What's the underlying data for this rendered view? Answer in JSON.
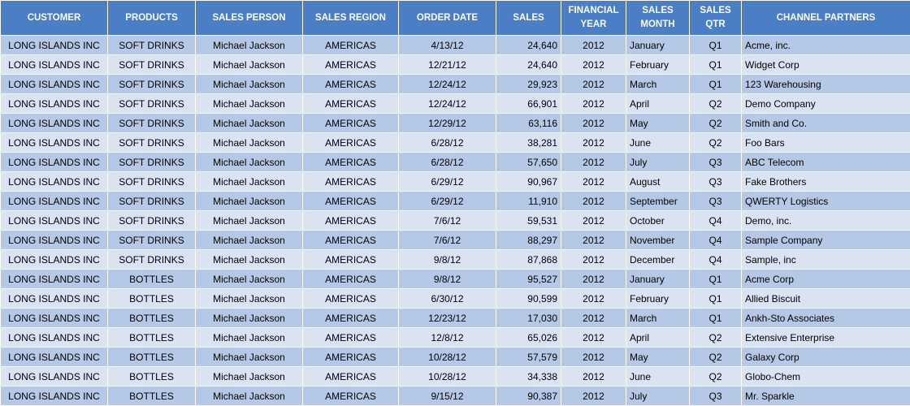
{
  "headers": {
    "customer": "CUSTOMER",
    "products": "PRODUCTS",
    "sales_person": "SALES PERSON",
    "sales_region": "SALES REGION",
    "order_date": "ORDER DATE",
    "sales": "SALES",
    "financial_year_1": "FINANCIAL",
    "financial_year_2": "YEAR",
    "sales_month_1": "SALES",
    "sales_month_2": "MONTH",
    "sales_qtr_1": "SALES",
    "sales_qtr_2": "QTR",
    "channel_partners": "CHANNEL PARTNERS"
  },
  "colors": {
    "header_bg": "#4a7ec5",
    "row_light": "#dae3f1",
    "row_dark": "#b5c9e6"
  },
  "rows": [
    [
      "LONG ISLANDS INC",
      "SOFT DRINKS",
      "Michael Jackson",
      "AMERICAS",
      "4/13/12",
      "24,640",
      "2012",
      "January",
      "Q1",
      "Acme, inc."
    ],
    [
      "LONG ISLANDS INC",
      "SOFT DRINKS",
      "Michael Jackson",
      "AMERICAS",
      "12/21/12",
      "24,640",
      "2012",
      "February",
      "Q1",
      "Widget Corp"
    ],
    [
      "LONG ISLANDS INC",
      "SOFT DRINKS",
      "Michael Jackson",
      "AMERICAS",
      "12/24/12",
      "29,923",
      "2012",
      "March",
      "Q1",
      "123 Warehousing"
    ],
    [
      "LONG ISLANDS INC",
      "SOFT DRINKS",
      "Michael Jackson",
      "AMERICAS",
      "12/24/12",
      "66,901",
      "2012",
      "April",
      "Q2",
      "Demo Company"
    ],
    [
      "LONG ISLANDS INC",
      "SOFT DRINKS",
      "Michael Jackson",
      "AMERICAS",
      "12/29/12",
      "63,116",
      "2012",
      "May",
      "Q2",
      "Smith and Co."
    ],
    [
      "LONG ISLANDS INC",
      "SOFT DRINKS",
      "Michael Jackson",
      "AMERICAS",
      "6/28/12",
      "38,281",
      "2012",
      "June",
      "Q2",
      "Foo Bars"
    ],
    [
      "LONG ISLANDS INC",
      "SOFT DRINKS",
      "Michael Jackson",
      "AMERICAS",
      "6/28/12",
      "57,650",
      "2012",
      "July",
      "Q3",
      "ABC Telecom"
    ],
    [
      "LONG ISLANDS INC",
      "SOFT DRINKS",
      "Michael Jackson",
      "AMERICAS",
      "6/29/12",
      "90,967",
      "2012",
      "August",
      "Q3",
      "Fake Brothers"
    ],
    [
      "LONG ISLANDS INC",
      "SOFT DRINKS",
      "Michael Jackson",
      "AMERICAS",
      "6/29/12",
      "11,910",
      "2012",
      "September",
      "Q3",
      "QWERTY Logistics"
    ],
    [
      "LONG ISLANDS INC",
      "SOFT DRINKS",
      "Michael Jackson",
      "AMERICAS",
      "7/6/12",
      "59,531",
      "2012",
      "October",
      "Q4",
      "Demo, inc."
    ],
    [
      "LONG ISLANDS INC",
      "SOFT DRINKS",
      "Michael Jackson",
      "AMERICAS",
      "7/6/12",
      "88,297",
      "2012",
      "November",
      "Q4",
      "Sample Company"
    ],
    [
      "LONG ISLANDS INC",
      "SOFT DRINKS",
      "Michael Jackson",
      "AMERICAS",
      "9/8/12",
      "87,868",
      "2012",
      "December",
      "Q4",
      "Sample, inc"
    ],
    [
      "LONG ISLANDS INC",
      "BOTTLES",
      "Michael Jackson",
      "AMERICAS",
      "9/8/12",
      "95,527",
      "2012",
      "January",
      "Q1",
      "Acme Corp"
    ],
    [
      "LONG ISLANDS INC",
      "BOTTLES",
      "Michael Jackson",
      "AMERICAS",
      "6/30/12",
      "90,599",
      "2012",
      "February",
      "Q1",
      "Allied Biscuit"
    ],
    [
      "LONG ISLANDS INC",
      "BOTTLES",
      "Michael Jackson",
      "AMERICAS",
      "12/23/12",
      "17,030",
      "2012",
      "March",
      "Q1",
      "Ankh-Sto Associates"
    ],
    [
      "LONG ISLANDS INC",
      "BOTTLES",
      "Michael Jackson",
      "AMERICAS",
      "12/8/12",
      "65,026",
      "2012",
      "April",
      "Q2",
      "Extensive Enterprise"
    ],
    [
      "LONG ISLANDS INC",
      "BOTTLES",
      "Michael Jackson",
      "AMERICAS",
      "10/28/12",
      "57,579",
      "2012",
      "May",
      "Q2",
      "Galaxy Corp"
    ],
    [
      "LONG ISLANDS INC",
      "BOTTLES",
      "Michael Jackson",
      "AMERICAS",
      "10/28/12",
      "34,338",
      "2012",
      "June",
      "Q2",
      "Globo-Chem"
    ],
    [
      "LONG ISLANDS INC",
      "BOTTLES",
      "Michael Jackson",
      "AMERICAS",
      "9/15/12",
      "90,387",
      "2012",
      "July",
      "Q3",
      "Mr. Sparkle"
    ]
  ]
}
